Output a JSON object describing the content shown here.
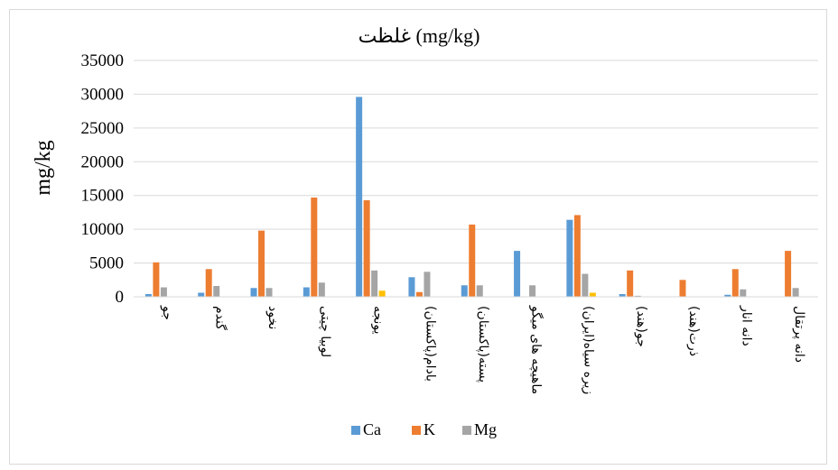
{
  "chart_data": {
    "type": "bar",
    "title": "غلظت (mg/kg)",
    "ylabel": "mg/kg",
    "xlabel": "",
    "ylim": [
      0,
      35000
    ],
    "yticks": [
      0,
      5000,
      10000,
      15000,
      20000,
      25000,
      30000,
      35000
    ],
    "grid": true,
    "legend_position": "bottom",
    "categories": [
      "جو",
      "گندم",
      "نخود",
      "لوبیا چیتی",
      "یونجه",
      "بادام(پاکستان)",
      "پسته(پاکستان)",
      "ماهیچه های میگو",
      "زیره سیاه(ایران)",
      "جو(هند)",
      "ذرت(هند)",
      "دانه انار",
      "دانه پرتقال"
    ],
    "series": [
      {
        "name": "Ca",
        "color": "#5b9bd5",
        "values": [
          400,
          600,
          1300,
          1400,
          29600,
          2900,
          1700,
          6800,
          11400,
          400,
          0,
          300,
          0
        ]
      },
      {
        "name": "K",
        "color": "#ed7d31",
        "values": [
          5100,
          4100,
          9800,
          14700,
          14300,
          700,
          10700,
          0,
          12100,
          3900,
          2500,
          4100,
          6800
        ]
      },
      {
        "name": "Mg",
        "color": "#a5a5a5",
        "values": [
          1400,
          1600,
          1300,
          2100,
          3900,
          3700,
          1700,
          1700,
          3400,
          150,
          0,
          1100,
          1300
        ]
      },
      {
        "name": "",
        "color": "#ffc000",
        "values": [
          0,
          0,
          0,
          0,
          900,
          0,
          0,
          0,
          600,
          0,
          0,
          0,
          0
        ]
      }
    ]
  }
}
